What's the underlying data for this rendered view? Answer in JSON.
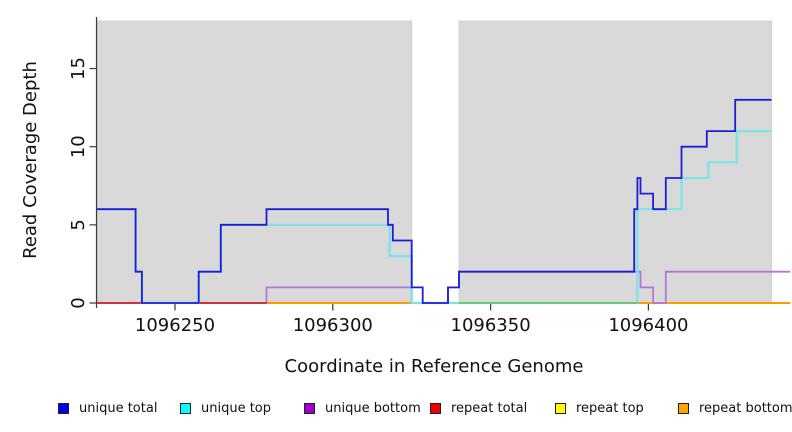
{
  "chart_data": {
    "type": "line",
    "step": "post",
    "title": "",
    "xlabel": "Coordinate in Reference Genome",
    "ylabel": "Read Coverage Depth",
    "x_ticks": [
      1096250,
      1096300,
      1096350,
      1096400
    ],
    "y_ticks": [
      0,
      5,
      10,
      15
    ],
    "xlim": [
      1096225,
      1096445
    ],
    "ylim": [
      0,
      18.3
    ],
    "grid": false,
    "legend_position": "bottom",
    "band_color": "#d9d9d9",
    "coverage_bands": [
      {
        "from": 1096225.3,
        "to": 1096325
      },
      {
        "from": 1096340,
        "to": 1096439
      }
    ],
    "series": [
      {
        "name": "repeat top",
        "color": "#ffff00",
        "width": 1.6,
        "segments": [
          {
            "points": [
              [
                1096340,
                0
              ]
            ],
            "end": 1096396.5
          }
        ]
      },
      {
        "name": "repeat bottom",
        "color": "#ff9d00",
        "width": 2,
        "segments": [
          {
            "points": [
              [
                1096279,
                0
              ]
            ],
            "end": 1096325
          },
          {
            "points": [
              [
                1096396.5,
                0
              ]
            ],
            "end": 1096445
          }
        ]
      },
      {
        "name": "unique bottom",
        "color": "#b476d9",
        "width": 1.8,
        "segments": [
          {
            "points": [
              [
                1096225.3,
                0
              ],
              [
                1096279,
                1
              ],
              [
                1096325,
                0
              ],
              [
                1096336.5,
                1
              ],
              [
                1096340,
                2
              ],
              [
                1096397.5,
                1
              ],
              [
                1096401.5,
                0
              ],
              [
                1096405.5,
                2
              ]
            ],
            "end": 1096445
          }
        ]
      },
      {
        "name": "repeat total",
        "color": "#cf3140",
        "width": 2,
        "segments": [
          {
            "points": [
              [
                1096225.3,
                0
              ]
            ],
            "end": 1096279
          }
        ]
      },
      {
        "name": "unique top",
        "color": "#79e4e9",
        "width": 2.2,
        "segments": [
          {
            "points": [
              [
                1096225.3,
                6
              ],
              [
                1096237.5,
                2
              ],
              [
                1096239.5,
                0
              ],
              [
                1096257.5,
                2
              ],
              [
                1096264.5,
                5
              ],
              [
                1096318,
                3
              ],
              [
                1096325,
                0
              ],
              [
                1096396.5,
                6
              ],
              [
                1096410.5,
                8
              ],
              [
                1096419,
                9
              ],
              [
                1096428,
                11
              ]
            ],
            "end": 1096439
          }
        ]
      },
      {
        "name": "unique total",
        "color": "#1d1dd8",
        "width": 1.8,
        "segments": [
          {
            "points": [
              [
                1096225.3,
                6
              ],
              [
                1096237.5,
                2
              ],
              [
                1096239.5,
                0
              ],
              [
                1096257.5,
                2
              ],
              [
                1096264.5,
                5
              ],
              [
                1096279,
                6
              ],
              [
                1096317.5,
                5
              ],
              [
                1096319,
                4
              ],
              [
                1096325,
                1
              ],
              [
                1096328.5,
                0
              ],
              [
                1096336.5,
                1
              ],
              [
                1096340,
                2
              ],
              [
                1096395.5,
                6
              ],
              [
                1096396.5,
                8
              ],
              [
                1096397.5,
                7
              ],
              [
                1096401.5,
                6
              ],
              [
                1096405.5,
                8
              ],
              [
                1096410.5,
                10
              ],
              [
                1096418.5,
                11
              ],
              [
                1096427.5,
                13
              ]
            ],
            "end": 1096439
          }
        ]
      }
    ],
    "overlap_blend_segments": [
      {
        "from": 1096340,
        "to": 1096396.5,
        "value": 0,
        "color": "#74c274",
        "note": "unique top + repeat top lines overlap at zero and render greenish"
      }
    ],
    "legend": {
      "items": [
        {
          "label": "unique total",
          "color": "#0000ee"
        },
        {
          "label": "unique top",
          "color": "#00ffff"
        },
        {
          "label": "unique bottom",
          "color": "#9900cc"
        },
        {
          "label": "repeat total",
          "color": "#ee0000"
        },
        {
          "label": "repeat top",
          "color": "#ffff00"
        },
        {
          "label": "repeat bottom",
          "color": "#ffa500"
        }
      ]
    }
  }
}
